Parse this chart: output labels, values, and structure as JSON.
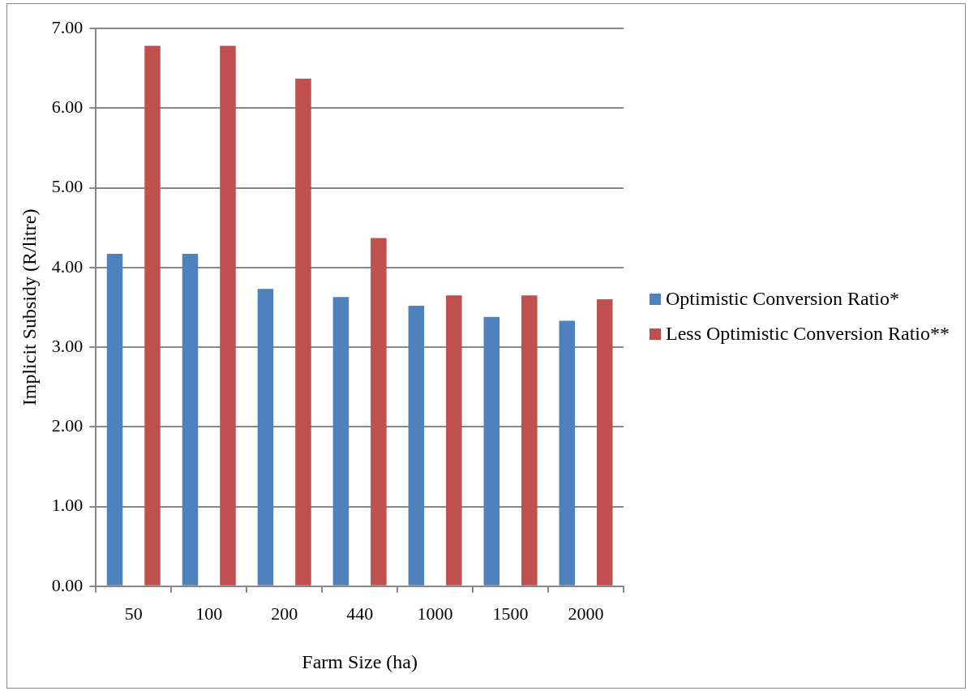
{
  "chart_data": {
    "type": "bar",
    "xlabel": "Farm Size (ha)",
    "ylabel": "Implicit Subsidy (R/litre)",
    "categories": [
      "50",
      "100",
      "200",
      "440",
      "1000",
      "1500",
      "2000"
    ],
    "series": [
      {
        "name": "Optimistic Conversion Ratio*",
        "color": "#4f81bd",
        "values": [
          4.17,
          4.17,
          3.73,
          3.63,
          3.52,
          3.38,
          3.33
        ]
      },
      {
        "name": "Less Optimistic Conversion Ratio**",
        "color": "#c0504d",
        "values": [
          6.78,
          6.78,
          6.37,
          4.37,
          3.65,
          3.65,
          3.6
        ]
      }
    ],
    "ylim": [
      0,
      7
    ],
    "yticks": [
      {
        "value": 0,
        "label": "0.00"
      },
      {
        "value": 1,
        "label": "1.00"
      },
      {
        "value": 2,
        "label": "2.00"
      },
      {
        "value": 3,
        "label": "3.00"
      },
      {
        "value": 4,
        "label": "4.00"
      },
      {
        "value": 5,
        "label": "5.00"
      },
      {
        "value": 6,
        "label": "6.00"
      },
      {
        "value": 7,
        "label": "7.00"
      }
    ],
    "grid": "y",
    "legend": "right"
  }
}
